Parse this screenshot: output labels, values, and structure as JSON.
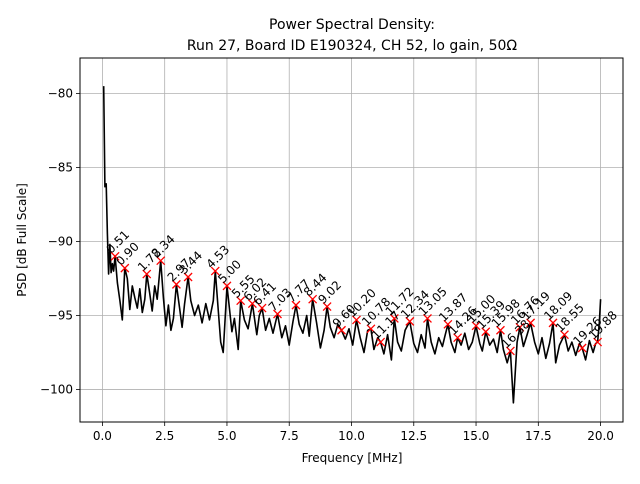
{
  "chart_data": {
    "type": "line",
    "title": "Power Spectral Density:",
    "subtitle": "Run 27, Board ID E190324, CH 52, lo gain, 50Ω",
    "xlabel": "Frequency [MHz]",
    "ylabel": "PSD [dB Full Scale]",
    "xlim": [
      -0.9,
      20.9
    ],
    "ylim": [
      -102.2,
      -77.6
    ],
    "xticks": [
      0.0,
      2.5,
      5.0,
      7.5,
      10.0,
      12.5,
      15.0,
      17.5,
      20.0
    ],
    "xtick_labels": [
      "0.0",
      "2.5",
      "5.0",
      "7.5",
      "10.0",
      "12.5",
      "15.0",
      "17.5",
      "20.0"
    ],
    "yticks": [
      -80,
      -85,
      -90,
      -95,
      -100
    ],
    "ytick_labels": [
      "−80",
      "−85",
      "−90",
      "−95",
      "−100"
    ],
    "grid": true,
    "line_color": "#000000",
    "marker_color": "#ff0000",
    "series": [
      {
        "name": "PSD",
        "x": [
          0.05,
          0.1,
          0.15,
          0.2,
          0.25,
          0.3,
          0.35,
          0.4,
          0.45,
          0.51,
          0.6,
          0.7,
          0.8,
          0.9,
          1.0,
          1.1,
          1.2,
          1.3,
          1.4,
          1.5,
          1.6,
          1.7,
          1.78,
          1.9,
          2.0,
          2.1,
          2.2,
          2.34,
          2.45,
          2.55,
          2.65,
          2.75,
          2.85,
          2.97,
          3.1,
          3.2,
          3.3,
          3.44,
          3.55,
          3.7,
          3.85,
          4.0,
          4.15,
          4.3,
          4.45,
          4.53,
          4.65,
          4.75,
          4.85,
          5.0,
          5.1,
          5.2,
          5.3,
          5.45,
          5.55,
          5.7,
          5.85,
          6.02,
          6.2,
          6.3,
          6.41,
          6.55,
          6.7,
          6.85,
          7.03,
          7.2,
          7.35,
          7.5,
          7.65,
          7.77,
          7.9,
          8.05,
          8.2,
          8.3,
          8.44,
          8.6,
          8.75,
          8.9,
          9.02,
          9.15,
          9.3,
          9.45,
          9.6,
          9.75,
          9.9,
          10.05,
          10.2,
          10.35,
          10.5,
          10.65,
          10.78,
          10.9,
          11.05,
          11.17,
          11.3,
          11.45,
          11.6,
          11.72,
          11.85,
          12.0,
          12.15,
          12.34,
          12.5,
          12.65,
          12.8,
          12.95,
          13.05,
          13.2,
          13.35,
          13.5,
          13.65,
          13.75,
          13.87,
          14.0,
          14.15,
          14.26,
          14.4,
          14.55,
          14.7,
          14.85,
          15.0,
          15.15,
          15.25,
          15.39,
          15.55,
          15.7,
          15.85,
          15.98,
          16.1,
          16.25,
          16.38,
          16.5,
          16.65,
          16.76,
          16.9,
          17.05,
          17.19,
          17.35,
          17.5,
          17.65,
          17.8,
          17.95,
          18.09,
          18.2,
          18.35,
          18.55,
          18.7,
          18.85,
          19.0,
          19.15,
          19.26,
          19.4,
          19.55,
          19.7,
          19.8,
          19.88,
          19.95,
          20.0
        ],
        "y": [
          -79.5,
          -86.3,
          -86.1,
          -89.5,
          -92.2,
          -90.2,
          -92.1,
          -91.5,
          -92.0,
          -91.0,
          -92.8,
          -94.0,
          -95.3,
          -91.8,
          -92.5,
          -94.6,
          -93.0,
          -93.8,
          -94.5,
          -93.2,
          -94.8,
          -93.9,
          -92.2,
          -93.5,
          -94.7,
          -93.0,
          -93.9,
          -91.3,
          -93.8,
          -95.7,
          -94.3,
          -96.0,
          -95.2,
          -92.9,
          -94.5,
          -95.8,
          -94.2,
          -92.4,
          -94.0,
          -95.0,
          -94.3,
          -95.5,
          -94.2,
          -95.3,
          -94.0,
          -92.0,
          -94.6,
          -96.8,
          -97.5,
          -93.0,
          -94.5,
          -96.1,
          -95.2,
          -97.3,
          -94.0,
          -95.3,
          -95.9,
          -94.2,
          -96.3,
          -95.0,
          -94.5,
          -96.0,
          -95.2,
          -96.2,
          -94.9,
          -96.5,
          -95.7,
          -97.0,
          -95.4,
          -94.3,
          -95.6,
          -96.2,
          -95.0,
          -96.4,
          -93.9,
          -95.5,
          -97.2,
          -96.0,
          -94.4,
          -95.8,
          -96.5,
          -95.6,
          -96.0,
          -96.6,
          -95.9,
          -97.0,
          -95.3,
          -96.5,
          -97.5,
          -96.0,
          -95.9,
          -97.3,
          -96.5,
          -96.8,
          -97.6,
          -96.3,
          -98.0,
          -95.2,
          -96.8,
          -97.4,
          -96.0,
          -95.4,
          -96.9,
          -97.5,
          -96.3,
          -97.2,
          -95.2,
          -96.8,
          -97.6,
          -96.5,
          -97.1,
          -96.4,
          -95.6,
          -96.8,
          -97.5,
          -96.5,
          -97.0,
          -96.2,
          -97.3,
          -96.8,
          -95.7,
          -96.9,
          -97.4,
          -96.1,
          -97.0,
          -96.6,
          -97.5,
          -96.0,
          -97.3,
          -98.2,
          -97.4,
          -100.9,
          -96.8,
          -95.8,
          -97.1,
          -96.3,
          -95.5,
          -96.8,
          -97.6,
          -96.5,
          -97.9,
          -96.9,
          -95.5,
          -98.2,
          -97.0,
          -96.3,
          -97.4,
          -96.8,
          -97.7,
          -96.9,
          -97.2,
          -98.0,
          -96.7,
          -97.5,
          -96.9,
          -96.8,
          -95.5,
          -93.9
        ],
        "peaks_x": [
          0.51,
          0.9,
          1.78,
          2.34,
          2.97,
          3.44,
          4.53,
          5.0,
          5.55,
          6.02,
          6.41,
          7.03,
          7.77,
          8.44,
          9.02,
          9.6,
          10.2,
          10.78,
          11.17,
          11.72,
          12.34,
          13.05,
          13.87,
          14.26,
          15.0,
          15.39,
          15.98,
          16.38,
          16.76,
          17.19,
          18.09,
          18.55,
          19.26,
          19.88
        ],
        "peaks_y": [
          -91.0,
          -91.8,
          -92.2,
          -91.3,
          -92.9,
          -92.4,
          -92.0,
          -93.0,
          -94.0,
          -94.2,
          -94.5,
          -94.9,
          -94.3,
          -93.9,
          -94.4,
          -96.0,
          -95.3,
          -95.9,
          -96.8,
          -95.2,
          -95.4,
          -95.2,
          -95.6,
          -96.5,
          -95.7,
          -96.1,
          -96.0,
          -97.4,
          -95.8,
          -95.5,
          -95.5,
          -96.3,
          -97.2,
          -96.8
        ],
        "peak_labels": [
          "0.51",
          "0.90",
          "1.78",
          "2.34",
          "2.97",
          "3.44",
          "4.53",
          "5.00",
          "5.55",
          "6.02",
          "6.41",
          "7.03",
          "7.77",
          "8.44",
          "9.02",
          "9.60",
          "10.20",
          "10.78",
          "11.17",
          "11.72",
          "12.34",
          "13.05",
          "13.87",
          "14.26",
          "15.00",
          "15.39",
          "15.98",
          "16.38",
          "16.76",
          "17.19",
          "18.09",
          "18.55",
          "19.26",
          "19.88"
        ]
      }
    ]
  }
}
